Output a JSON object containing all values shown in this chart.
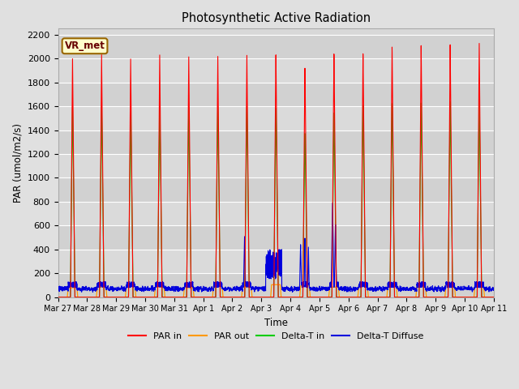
{
  "title": "Photosynthetic Active Radiation",
  "ylabel": "PAR (umol/m2/s)",
  "xlabel": "Time",
  "ylim": [
    0,
    2250
  ],
  "yticks": [
    0,
    200,
    400,
    600,
    800,
    1000,
    1200,
    1400,
    1600,
    1800,
    2000,
    2200
  ],
  "fig_bg_color": "#e0e0e0",
  "plot_bg_color": "#d8d8d8",
  "grid_color": "#ffffff",
  "label_box_text": "VR_met",
  "label_box_bg": "#ffffcc",
  "label_box_border": "#996600",
  "par_in_color": "#ff0000",
  "par_out_color": "#ff9900",
  "delta_t_in_color": "#00cc00",
  "delta_t_diffuse_color": "#0000dd",
  "legend_labels": [
    "PAR in",
    "PAR out",
    "Delta-T in",
    "Delta-T Diffuse"
  ],
  "n_days": 15,
  "peaks_par_in": [
    2000,
    2040,
    2010,
    2050,
    2040,
    2050,
    2065,
    2075,
    1960,
    2075,
    2070,
    2120,
    2125,
    2125,
    2130
  ],
  "peaks_par_out": [
    80,
    85,
    90,
    85,
    80,
    90,
    85,
    105,
    95,
    85,
    90,
    90,
    90,
    95,
    90
  ],
  "peaks_delta_t_in": [
    1600,
    1610,
    1575,
    1610,
    1610,
    1620,
    1625,
    1615,
    1400,
    1570,
    1630,
    1640,
    1640,
    1645,
    1660
  ],
  "baseline_blue": 75,
  "anomaly_info": {
    "day6_peak": 530,
    "day7_peaks": [
      200,
      390
    ],
    "day8_peak": 790,
    "day9_peak": 200
  },
  "x_tick_labels": [
    "Mar 27",
    "Mar 28",
    "Mar 29",
    "Mar 30",
    "Mar 31",
    "Apr 1",
    "Apr 2",
    "Apr 3",
    "Apr 4",
    "Apr 5",
    "Apr 6",
    "Apr 7",
    "Apr 8",
    "Apr 9",
    "Apr 10",
    "Apr 11"
  ]
}
